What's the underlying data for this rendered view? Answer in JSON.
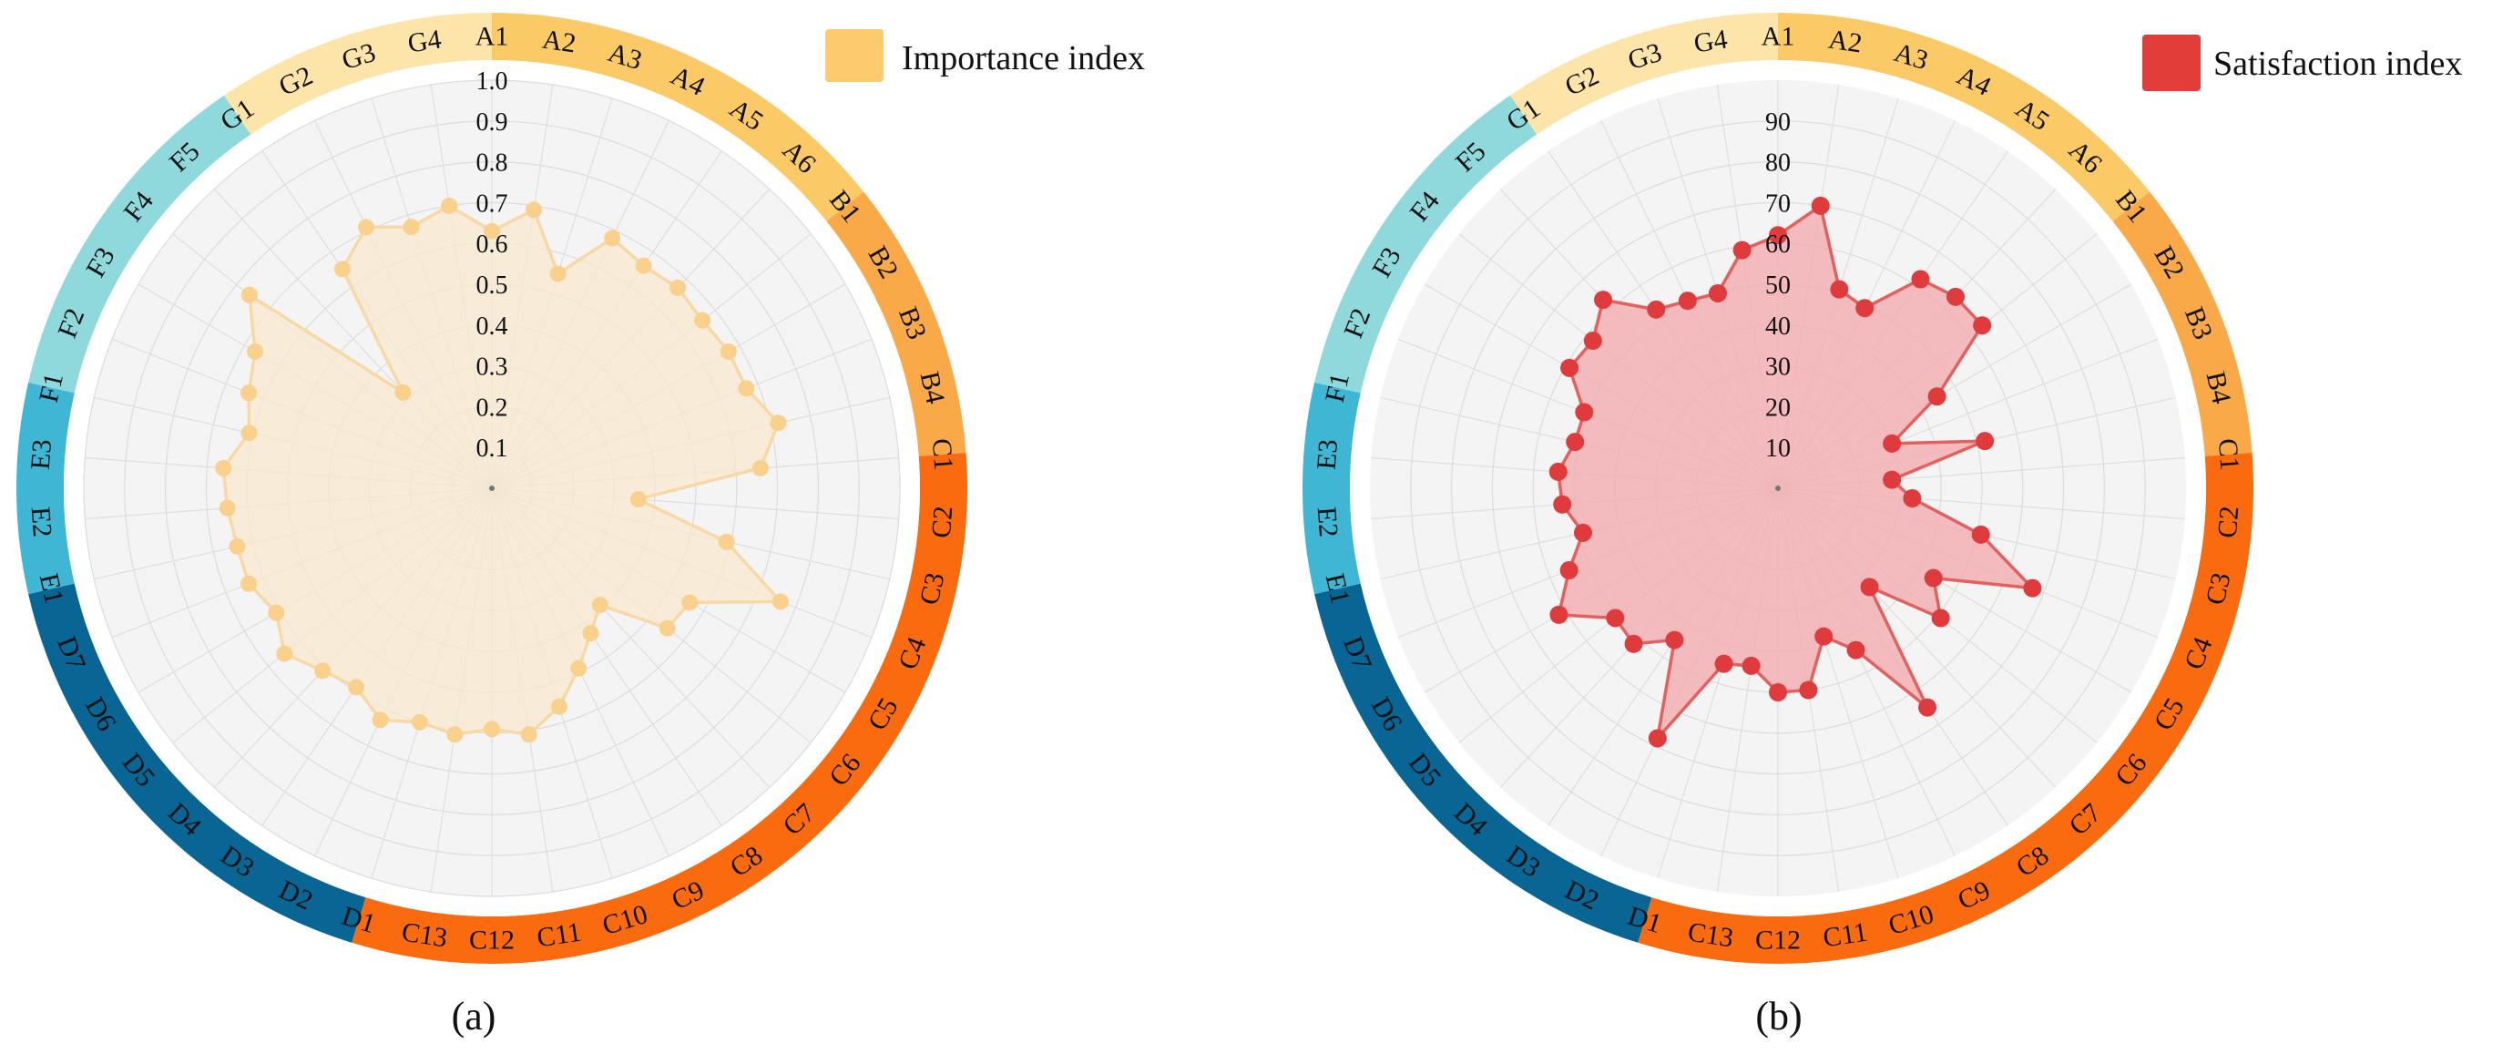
{
  "chart_data": [
    {
      "type": "radar",
      "panel_caption": "(a)",
      "legend": {
        "label": "Importance index",
        "color": "#fdca6e",
        "placement": "top-right"
      },
      "rmax": 1.0,
      "ticks": [
        0.1,
        0.2,
        0.3,
        0.4,
        0.5,
        0.6,
        0.7,
        0.8,
        0.9,
        1.0
      ],
      "tick_labels": [
        "0.1",
        "0.2",
        "0.3",
        "0.4",
        "0.5",
        "0.6",
        "0.7",
        "0.8",
        "0.9",
        "1.0"
      ],
      "series_fill": "#fae8cf",
      "series_line": "#f8d9a6",
      "series_point": "#f9d08c",
      "categories": [
        "A1",
        "A2",
        "A3",
        "A4",
        "A5",
        "A6",
        "B1",
        "B2",
        "B3",
        "B4",
        "C1",
        "C2",
        "C3",
        "C4",
        "C5",
        "C6",
        "C7",
        "C8",
        "C9",
        "C10",
        "C11",
        "C12",
        "C13",
        "D1",
        "D2",
        "D3",
        "D4",
        "D5",
        "D6",
        "D7",
        "E1",
        "E2",
        "E3",
        "F1",
        "F2",
        "F3",
        "F4",
        "F5",
        "G1",
        "G2",
        "G3",
        "G4"
      ],
      "values": [
        0.63,
        0.69,
        0.55,
        0.68,
        0.66,
        0.67,
        0.66,
        0.67,
        0.67,
        0.72,
        0.66,
        0.36,
        0.59,
        0.76,
        0.56,
        0.55,
        0.39,
        0.43,
        0.49,
        0.56,
        0.61,
        0.59,
        0.61,
        0.6,
        0.63,
        0.59,
        0.61,
        0.65,
        0.61,
        0.64,
        0.64,
        0.65,
        0.66,
        0.61,
        0.64,
        0.67,
        0.76,
        0.32,
        0.65,
        0.71,
        0.67,
        0.7
      ]
    },
    {
      "type": "radar",
      "panel_caption": "(b)",
      "legend": {
        "label": "Satisfaction index",
        "color": "#e33d3a",
        "placement": "top-right"
      },
      "rmax": 100,
      "ticks": [
        10,
        20,
        30,
        40,
        50,
        60,
        70,
        80,
        90
      ],
      "tick_labels": [
        "10",
        "20",
        "30",
        "40",
        "50",
        "60",
        "70",
        "80",
        "90"
      ],
      "series_fill": "#f4adb0",
      "series_line": "#e2605e",
      "series_point": "#df3a3c",
      "categories": [
        "A1",
        "A2",
        "A3",
        "A4",
        "A5",
        "A6",
        "B1",
        "B2",
        "B3",
        "B4",
        "C1",
        "C2",
        "C3",
        "C4",
        "C5",
        "C6",
        "C7",
        "C8",
        "C9",
        "C10",
        "C11",
        "C12",
        "C13",
        "D1",
        "D2",
        "D3",
        "D4",
        "D5",
        "D6",
        "D7",
        "E1",
        "E2",
        "E3",
        "F1",
        "F2",
        "F3",
        "F4",
        "F5",
        "G1",
        "G2",
        "G3",
        "G4"
      ],
      "values": [
        62,
        70,
        51,
        49,
        62,
        64,
        64,
        45,
        30,
        52,
        28,
        33,
        51,
        67,
        44,
        51,
        33,
        65,
        44,
        38,
        50,
        50,
        44,
        45,
        68,
        45,
        52,
        51,
        62,
        55,
        49,
        53,
        54,
        51,
        51,
        59,
        58,
        63,
        53,
        51,
        50,
        59
      ]
    }
  ],
  "segments": [
    {
      "labels": [
        "A1",
        "A2",
        "A3",
        "A4",
        "A5",
        "A6"
      ],
      "color": "#fbca66"
    },
    {
      "labels": [
        "B1",
        "B2",
        "B3",
        "B4"
      ],
      "color": "#f9a948"
    },
    {
      "labels": [
        "C1",
        "C2",
        "C3",
        "C4",
        "C5",
        "C6",
        "C7",
        "C8",
        "C9",
        "C10",
        "C11",
        "C12",
        "C13"
      ],
      "color": "#fa6b10"
    },
    {
      "labels": [
        "D1",
        "D2",
        "D3",
        "D4",
        "D5",
        "D6",
        "D7"
      ],
      "color": "#086594"
    },
    {
      "labels": [
        "E1",
        "E2",
        "E3"
      ],
      "color": "#3fb6d4"
    },
    {
      "labels": [
        "F1",
        "F2",
        "F3",
        "F4",
        "F5"
      ],
      "color": "#8fd8dc"
    },
    {
      "labels": [
        "G1",
        "G2",
        "G3",
        "G4"
      ],
      "color": "#fde4a8"
    }
  ]
}
